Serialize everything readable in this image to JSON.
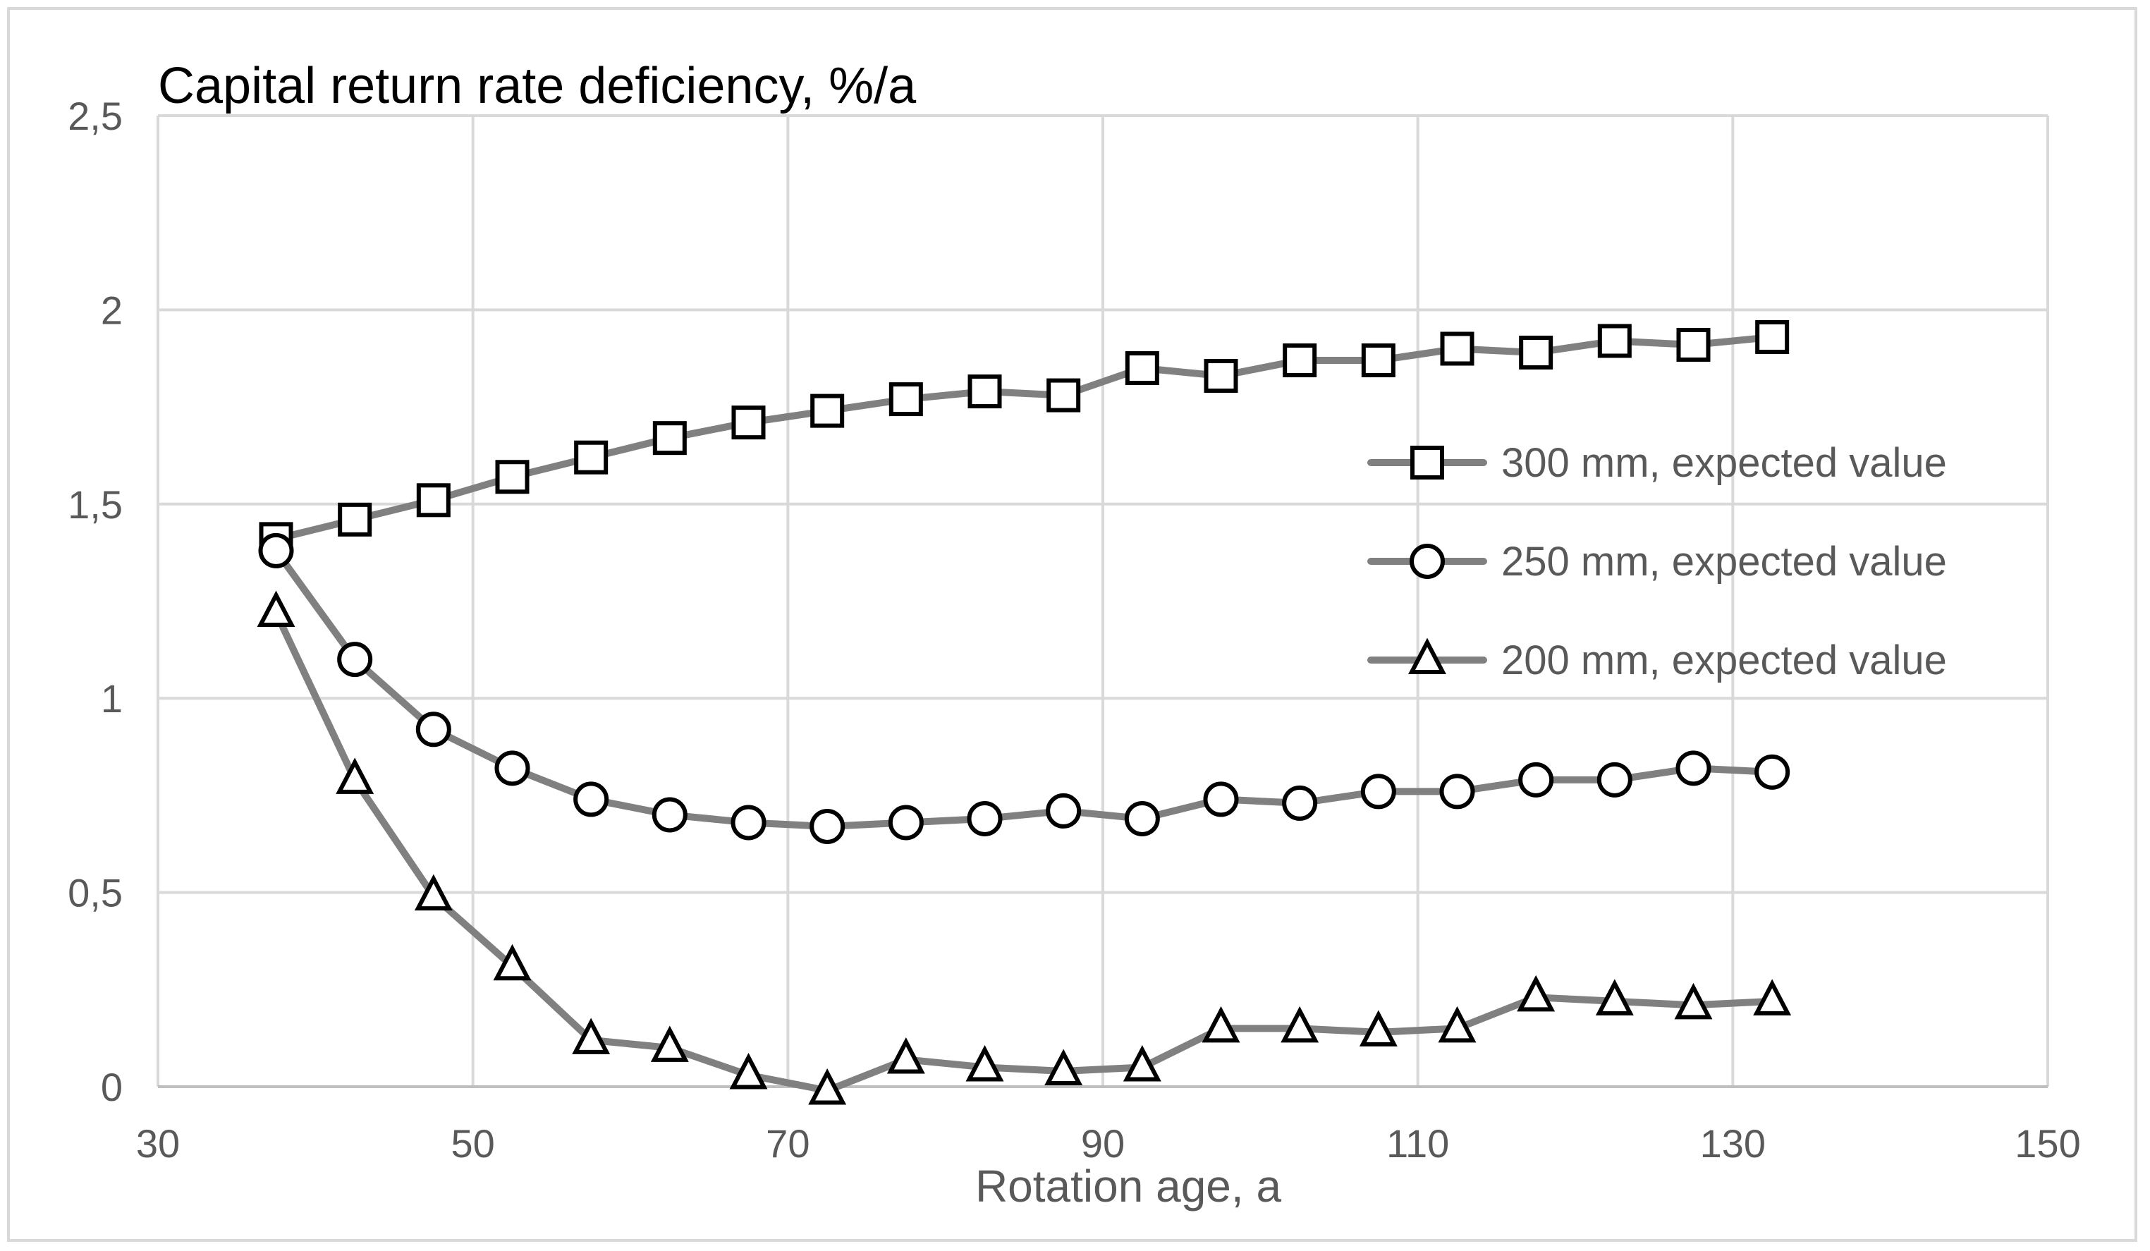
{
  "chart_data": {
    "type": "line",
    "title": "Capital return rate deficiency,  %/a",
    "xlabel": "Rotation age, a",
    "ylabel": "",
    "xlim": [
      30,
      150
    ],
    "ylim": [
      0,
      2.5
    ],
    "xticks": [
      "30",
      "50",
      "70",
      "90",
      "110",
      "130",
      "150"
    ],
    "xtick_values": [
      30,
      50,
      70,
      90,
      110,
      130,
      150
    ],
    "yticks": [
      "0",
      "0,5",
      "1",
      "1,5",
      "2",
      "2,5"
    ],
    "ytick_values": [
      0,
      0.5,
      1,
      1.5,
      2,
      2.5
    ],
    "grid": true,
    "legend_position": "right",
    "line_color": "#808080",
    "marker_color": "#000000",
    "x": [
      37.5,
      42.5,
      47.5,
      52.5,
      57.5,
      62.5,
      67.5,
      72.5,
      77.5,
      82.5,
      87.5,
      92.5,
      97.5,
      102.5,
      107.5,
      112.5,
      117.5,
      122.5,
      127.5,
      132.5
    ],
    "series": [
      {
        "name": "300 mm, expected value",
        "marker": "square",
        "values": [
          1.41,
          1.46,
          1.51,
          1.57,
          1.62,
          1.67,
          1.71,
          1.74,
          1.77,
          1.79,
          1.78,
          1.85,
          1.83,
          1.87,
          1.87,
          1.9,
          1.89,
          1.92,
          1.91,
          1.93
        ]
      },
      {
        "name": "250 mm, expected value",
        "marker": "circle",
        "values": [
          1.38,
          1.1,
          0.92,
          0.82,
          0.74,
          0.7,
          0.68,
          0.67,
          0.68,
          0.69,
          0.71,
          0.69,
          0.74,
          0.73,
          0.76,
          0.76,
          0.79,
          0.79,
          0.82,
          0.81
        ]
      },
      {
        "name": "200 mm, expected value",
        "marker": "triangle",
        "values": [
          1.22,
          0.79,
          0.49,
          0.31,
          0.12,
          0.1,
          0.03,
          -0.01,
          0.07,
          0.05,
          0.04,
          0.05,
          0.15,
          0.15,
          0.14,
          0.15,
          0.23,
          0.22,
          0.21,
          0.22
        ]
      }
    ]
  }
}
